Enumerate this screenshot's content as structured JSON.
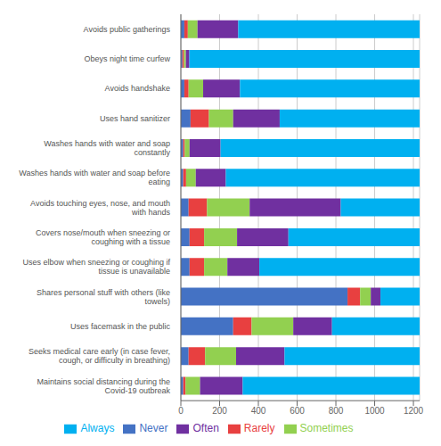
{
  "chart_data": {
    "type": "bar",
    "orientation": "horizontal",
    "stacked": true,
    "categories": [
      "Avoids public gatherings",
      "Obeys night time curfew",
      "Avoids handshake",
      "Uses hand sanitizer",
      "Washes hands with water and soap\nconstantly",
      "Washes hands with water and soap before\neating",
      "Avoids touching eyes, nose, and mouth\nwith hands",
      "Covers nose/mouth when sneezing or\ncoughing with a tissue",
      "Uses elbow when sneezing or coughing if\ntissue is unavailable",
      "Shares personal stuff with others (like\ntowels)",
      "Uses facemask in the public",
      "Seeks medical care early (in case fever,\ncough, or difficulty in breathing)",
      "Maintains social distancing during the\nCovid-19 outbreak"
    ],
    "series": [
      {
        "name": "Never",
        "color": "#4472c4",
        "values": [
          18,
          8,
          18,
          50,
          12,
          12,
          40,
          45,
          45,
          860,
          270,
          40,
          12
        ]
      },
      {
        "name": "Rarely",
        "color": "#e84040",
        "values": [
          18,
          8,
          22,
          95,
          8,
          15,
          95,
          75,
          75,
          65,
          95,
          85,
          12
        ]
      },
      {
        "name": "Sometimes",
        "color": "#92d050",
        "values": [
          50,
          10,
          75,
          125,
          25,
          50,
          220,
          170,
          120,
          55,
          215,
          160,
          75
        ]
      },
      {
        "name": "Often",
        "color": "#7030a0",
        "values": [
          210,
          18,
          190,
          240,
          160,
          155,
          470,
          265,
          165,
          50,
          200,
          250,
          220
        ]
      },
      {
        "name": "Always",
        "color": "#00b0f0",
        "values": [
          936,
          1188,
          927,
          722,
          1027,
          1000,
          407,
          677,
          827,
          202,
          452,
          697,
          913
        ]
      }
    ],
    "xlim": [
      0,
      1232
    ],
    "xticks": [
      0,
      200,
      400,
      600,
      800,
      1000,
      1200
    ],
    "grid": true,
    "legend": "bottom"
  }
}
